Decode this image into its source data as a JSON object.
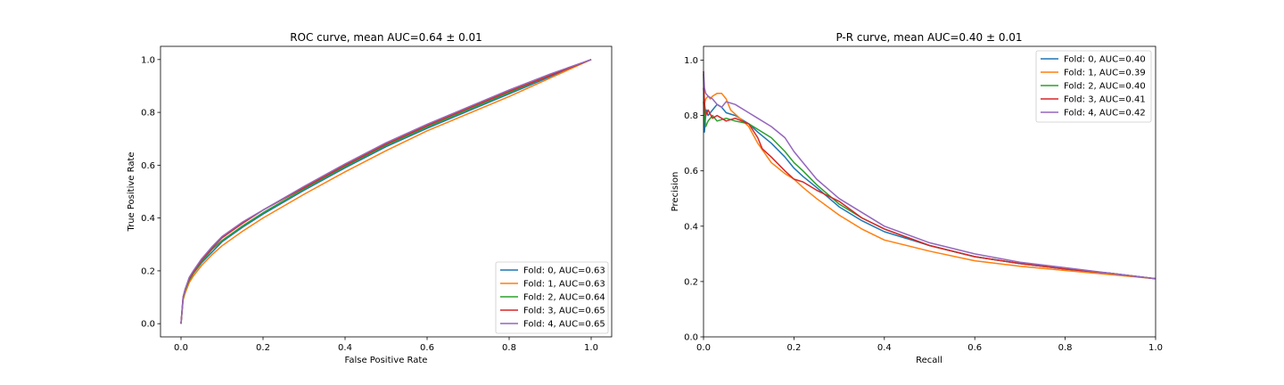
{
  "chart_data": [
    {
      "type": "line",
      "title": "ROC curve, mean AUC=0.64 ± 0.01",
      "xlabel": "False Positive Rate",
      "ylabel": "True Positive Rate",
      "xlim": [
        -0.05,
        1.05
      ],
      "ylim": [
        -0.05,
        1.05
      ],
      "xticks": [
        0.0,
        0.2,
        0.4,
        0.6,
        0.8,
        1.0
      ],
      "yticks": [
        0.0,
        0.2,
        0.4,
        0.6,
        0.8,
        1.0
      ],
      "xtick_labels": [
        "0.0",
        "0.2",
        "0.4",
        "0.6",
        "0.8",
        "1.0"
      ],
      "ytick_labels": [
        "0.0",
        "0.2",
        "0.4",
        "0.6",
        "0.8",
        "1.0"
      ],
      "grid": false,
      "legend_position": "bottom-right",
      "series": [
        {
          "name": "Fold: 0, AUC=0.63",
          "color": "#1f77b4",
          "x": [
            0,
            0.005,
            0.01,
            0.02,
            0.03,
            0.05,
            0.075,
            0.1,
            0.15,
            0.2,
            0.3,
            0.4,
            0.5,
            0.6,
            0.7,
            0.8,
            0.9,
            1.0
          ],
          "y": [
            0,
            0.09,
            0.12,
            0.16,
            0.19,
            0.23,
            0.27,
            0.31,
            0.365,
            0.415,
            0.505,
            0.59,
            0.67,
            0.74,
            0.805,
            0.87,
            0.935,
            1.0
          ]
        },
        {
          "name": "Fold: 1, AUC=0.63",
          "color": "#ff7f0e",
          "x": [
            0,
            0.005,
            0.01,
            0.02,
            0.03,
            0.05,
            0.075,
            0.1,
            0.15,
            0.2,
            0.3,
            0.4,
            0.5,
            0.6,
            0.7,
            0.8,
            0.9,
            1.0
          ],
          "y": [
            0,
            0.09,
            0.115,
            0.155,
            0.18,
            0.22,
            0.26,
            0.295,
            0.35,
            0.4,
            0.49,
            0.575,
            0.655,
            0.73,
            0.795,
            0.86,
            0.93,
            1.0
          ]
        },
        {
          "name": "Fold: 2, AUC=0.64",
          "color": "#2ca02c",
          "x": [
            0,
            0.005,
            0.01,
            0.02,
            0.03,
            0.05,
            0.075,
            0.1,
            0.15,
            0.2,
            0.3,
            0.4,
            0.5,
            0.6,
            0.7,
            0.8,
            0.9,
            1.0
          ],
          "y": [
            0,
            0.095,
            0.125,
            0.165,
            0.19,
            0.235,
            0.28,
            0.315,
            0.37,
            0.42,
            0.51,
            0.595,
            0.675,
            0.745,
            0.81,
            0.875,
            0.94,
            1.0
          ]
        },
        {
          "name": "Fold: 3, AUC=0.65",
          "color": "#d62728",
          "x": [
            0,
            0.005,
            0.01,
            0.02,
            0.03,
            0.05,
            0.075,
            0.1,
            0.15,
            0.2,
            0.3,
            0.4,
            0.5,
            0.6,
            0.7,
            0.8,
            0.9,
            1.0
          ],
          "y": [
            0,
            0.1,
            0.13,
            0.17,
            0.195,
            0.24,
            0.285,
            0.325,
            0.38,
            0.43,
            0.515,
            0.6,
            0.68,
            0.75,
            0.815,
            0.88,
            0.94,
            1.0
          ]
        },
        {
          "name": "Fold: 4, AUC=0.65",
          "color": "#9467bd",
          "x": [
            0,
            0.005,
            0.01,
            0.02,
            0.03,
            0.05,
            0.075,
            0.1,
            0.15,
            0.2,
            0.3,
            0.4,
            0.5,
            0.6,
            0.7,
            0.8,
            0.9,
            1.0
          ],
          "y": [
            0,
            0.1,
            0.13,
            0.175,
            0.2,
            0.245,
            0.29,
            0.33,
            0.385,
            0.43,
            0.52,
            0.605,
            0.685,
            0.755,
            0.82,
            0.885,
            0.945,
            1.0
          ]
        }
      ]
    },
    {
      "type": "line",
      "title": "P-R curve, mean AUC=0.40 ± 0.01",
      "xlabel": "Recall",
      "ylabel": "Precision",
      "xlim": [
        0.0,
        1.0
      ],
      "ylim": [
        0.0,
        1.05
      ],
      "xticks": [
        0.0,
        0.2,
        0.4,
        0.6,
        0.8,
        1.0
      ],
      "yticks": [
        0.0,
        0.2,
        0.4,
        0.6,
        0.8,
        1.0
      ],
      "xtick_labels": [
        "0.0",
        "0.2",
        "0.4",
        "0.6",
        "0.8",
        "1.0"
      ],
      "ytick_labels": [
        "0.0",
        "0.2",
        "0.4",
        "0.6",
        "0.8",
        "1.0"
      ],
      "grid": false,
      "legend_position": "top-right",
      "series": [
        {
          "name": "Fold: 0, AUC=0.40",
          "color": "#1f77b4",
          "x": [
            0,
            0.002,
            0.004,
            0.006,
            0.01,
            0.02,
            0.03,
            0.04,
            0.05,
            0.07,
            0.1,
            0.12,
            0.15,
            0.18,
            0.2,
            0.22,
            0.25,
            0.3,
            0.35,
            0.4,
            0.5,
            0.6,
            0.7,
            0.8,
            0.9,
            1.0
          ],
          "y": [
            0.95,
            0.74,
            0.78,
            0.82,
            0.8,
            0.82,
            0.84,
            0.83,
            0.81,
            0.8,
            0.77,
            0.74,
            0.7,
            0.65,
            0.61,
            0.58,
            0.54,
            0.47,
            0.42,
            0.38,
            0.33,
            0.29,
            0.265,
            0.245,
            0.23,
            0.21
          ]
        },
        {
          "name": "Fold: 1, AUC=0.39",
          "color": "#ff7f0e",
          "x": [
            0,
            0.002,
            0.005,
            0.01,
            0.015,
            0.02,
            0.03,
            0.04,
            0.05,
            0.06,
            0.08,
            0.1,
            0.12,
            0.15,
            0.18,
            0.2,
            0.22,
            0.25,
            0.3,
            0.35,
            0.4,
            0.5,
            0.6,
            0.7,
            0.8,
            0.9,
            1.0
          ],
          "y": [
            0.96,
            0.84,
            0.86,
            0.87,
            0.86,
            0.87,
            0.88,
            0.88,
            0.86,
            0.82,
            0.79,
            0.76,
            0.7,
            0.63,
            0.59,
            0.57,
            0.54,
            0.5,
            0.44,
            0.39,
            0.35,
            0.31,
            0.275,
            0.255,
            0.24,
            0.225,
            0.21
          ]
        },
        {
          "name": "Fold: 2, AUC=0.40",
          "color": "#2ca02c",
          "x": [
            0,
            0.002,
            0.005,
            0.01,
            0.02,
            0.03,
            0.05,
            0.07,
            0.1,
            0.12,
            0.15,
            0.18,
            0.2,
            0.22,
            0.25,
            0.3,
            0.35,
            0.4,
            0.5,
            0.6,
            0.7,
            0.8,
            0.9,
            1.0
          ],
          "y": [
            0.85,
            0.8,
            0.76,
            0.78,
            0.8,
            0.78,
            0.79,
            0.78,
            0.77,
            0.75,
            0.72,
            0.67,
            0.63,
            0.6,
            0.55,
            0.48,
            0.43,
            0.39,
            0.33,
            0.29,
            0.265,
            0.245,
            0.23,
            0.21
          ]
        },
        {
          "name": "Fold: 3, AUC=0.41",
          "color": "#d62728",
          "x": [
            0,
            0.002,
            0.005,
            0.01,
            0.02,
            0.03,
            0.05,
            0.07,
            0.1,
            0.12,
            0.13,
            0.15,
            0.18,
            0.2,
            0.22,
            0.25,
            0.3,
            0.35,
            0.4,
            0.5,
            0.6,
            0.7,
            0.8,
            0.9,
            1.0
          ],
          "y": [
            0.9,
            0.85,
            0.8,
            0.82,
            0.79,
            0.8,
            0.78,
            0.79,
            0.77,
            0.72,
            0.68,
            0.65,
            0.6,
            0.57,
            0.56,
            0.53,
            0.49,
            0.43,
            0.39,
            0.33,
            0.29,
            0.265,
            0.245,
            0.23,
            0.21
          ]
        },
        {
          "name": "Fold: 4, AUC=0.42",
          "color": "#9467bd",
          "x": [
            0,
            0.002,
            0.005,
            0.01,
            0.02,
            0.03,
            0.04,
            0.05,
            0.07,
            0.1,
            0.12,
            0.15,
            0.18,
            0.2,
            0.22,
            0.25,
            0.3,
            0.35,
            0.4,
            0.5,
            0.6,
            0.7,
            0.8,
            0.9,
            1.0
          ],
          "y": [
            0.96,
            0.9,
            0.88,
            0.87,
            0.86,
            0.84,
            0.83,
            0.85,
            0.84,
            0.81,
            0.79,
            0.76,
            0.72,
            0.67,
            0.63,
            0.57,
            0.5,
            0.45,
            0.4,
            0.34,
            0.3,
            0.27,
            0.25,
            0.23,
            0.21
          ]
        }
      ]
    }
  ]
}
